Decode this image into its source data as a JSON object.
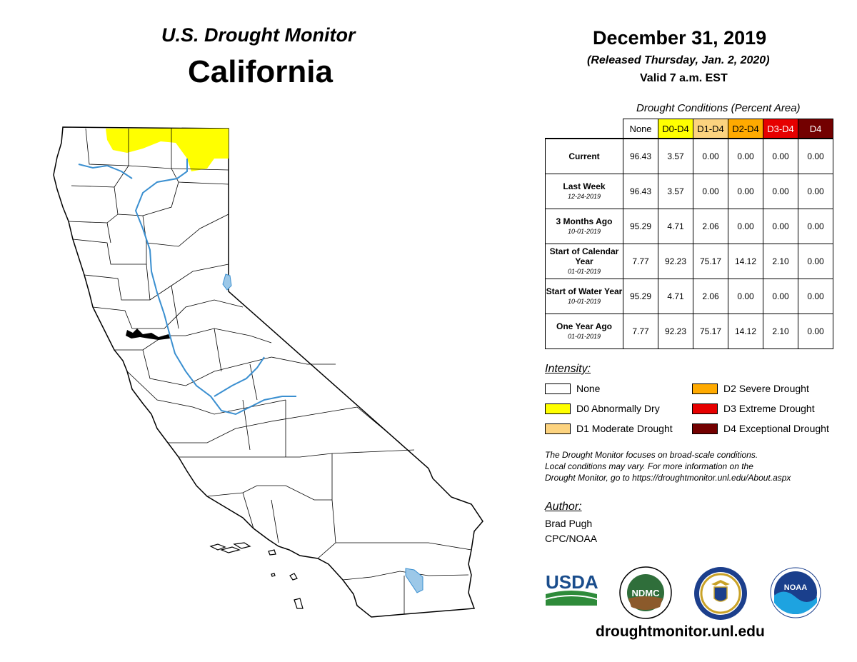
{
  "header": {
    "usdm_title": "U.S. Drought Monitor",
    "state": "California",
    "date": "December 31, 2019",
    "released": "(Released Thursday, Jan. 2, 2020)",
    "valid": "Valid 7 a.m. EST"
  },
  "table": {
    "caption": "Drought Conditions (Percent Area)",
    "columns": [
      {
        "label": "None",
        "color": "#ffffff",
        "text_color": "#000000"
      },
      {
        "label": "D0-D4",
        "color": "#ffff00",
        "text_color": "#000000"
      },
      {
        "label": "D1-D4",
        "color": "#fcd37f",
        "text_color": "#000000"
      },
      {
        "label": "D2-D4",
        "color": "#ffaa00",
        "text_color": "#000000"
      },
      {
        "label": "D3-D4",
        "color": "#e60000",
        "text_color": "#ffffff"
      },
      {
        "label": "D4",
        "color": "#730000",
        "text_color": "#ffffff"
      }
    ],
    "rows": [
      {
        "label": "Current",
        "date": "",
        "values": [
          "96.43",
          "3.57",
          "0.00",
          "0.00",
          "0.00",
          "0.00"
        ]
      },
      {
        "label": "Last Week",
        "date": "12-24-2019",
        "values": [
          "96.43",
          "3.57",
          "0.00",
          "0.00",
          "0.00",
          "0.00"
        ]
      },
      {
        "label": "3 Months Ago",
        "date": "10-01-2019",
        "values": [
          "95.29",
          "4.71",
          "2.06",
          "0.00",
          "0.00",
          "0.00"
        ]
      },
      {
        "label": "Start of Calendar Year",
        "date": "01-01-2019",
        "values": [
          "7.77",
          "92.23",
          "75.17",
          "14.12",
          "2.10",
          "0.00"
        ]
      },
      {
        "label": "Start of Water Year",
        "date": "10-01-2019",
        "values": [
          "95.29",
          "4.71",
          "2.06",
          "0.00",
          "0.00",
          "0.00"
        ]
      },
      {
        "label": "One Year Ago",
        "date": "01-01-2019",
        "values": [
          "7.77",
          "92.23",
          "75.17",
          "14.12",
          "2.10",
          "0.00"
        ]
      }
    ]
  },
  "legend": {
    "title": "Intensity:",
    "items": [
      {
        "label": "None",
        "color": "#ffffff"
      },
      {
        "label": "D0 Abnormally Dry",
        "color": "#ffff00"
      },
      {
        "label": "D1 Moderate Drought",
        "color": "#fcd37f"
      },
      {
        "label": "D2 Severe Drought",
        "color": "#ffaa00"
      },
      {
        "label": "D3 Extreme Drought",
        "color": "#e60000"
      },
      {
        "label": "D4 Exceptional Drought",
        "color": "#730000"
      }
    ]
  },
  "note": {
    "line1": "The Drought Monitor focuses on broad-scale conditions.",
    "line2": "Local conditions may vary. For more information on the",
    "line3": "Drought Monitor, go to https://droughtmonitor.unl.edu/About.aspx"
  },
  "author": {
    "title": "Author:",
    "name": "Brad Pugh",
    "org": "CPC/NOAA"
  },
  "logos": {
    "usda": "USDA",
    "ndmc": "NDMC",
    "noaa": "NOAA"
  },
  "website": "droughtmonitor.unl.edu",
  "map_colors": {
    "land": "#ffffff",
    "border": "#000000",
    "river": "#3a8fd0",
    "d0": "#ffff00",
    "lake": "#9cc8e8"
  }
}
